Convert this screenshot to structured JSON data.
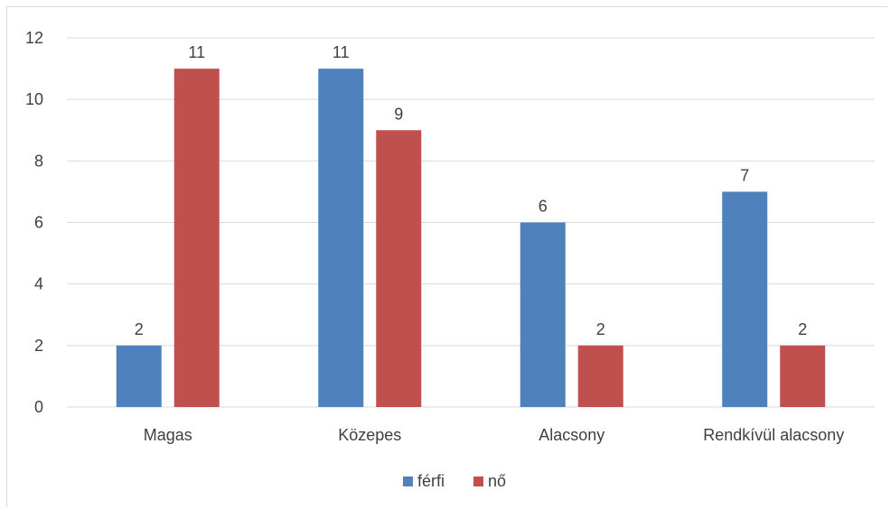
{
  "chart_data": {
    "type": "bar",
    "categories": [
      "Magas",
      "Közepes",
      "Alacsony",
      "Rendkívül alacsony"
    ],
    "series": [
      {
        "name": "férfi",
        "values": [
          2,
          11,
          6,
          7
        ],
        "color": "#4f81bd"
      },
      {
        "name": "nő",
        "values": [
          11,
          9,
          2,
          2
        ],
        "color": "#c0504d"
      }
    ],
    "yticks": [
      0,
      2,
      4,
      6,
      8,
      10,
      12
    ],
    "ylim": [
      0,
      12
    ],
    "grid": true,
    "legend_position": "bottom",
    "data_labels": true
  }
}
